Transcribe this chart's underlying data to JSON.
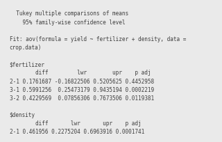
{
  "lines": [
    "  Tukey multiple comparisons of means",
    "    95% family-wise confidence level",
    "",
    "Fit: aov(formula = yield ~ fertilizer + density, data =",
    "crop.data)",
    "",
    "$fertilizer",
    "        diff         lwr        upr    p adj",
    "2-1 0.1761687 -0.16822506 0.5205625 0.4452958",
    "3-1 0.5991256  0.25473179 0.9435194 0.0002219",
    "3-2 0.4229569  0.07856306 0.7673506 0.0119381",
    "",
    "$density",
    "        diff       lwr       upr    p adj",
    "2-1 0.461956 0.2275204 0.6963916 0.0001741"
  ],
  "font_size": 5.6,
  "font_family": "monospace",
  "bg_color": "#eaeaea",
  "text_color": "#404040"
}
